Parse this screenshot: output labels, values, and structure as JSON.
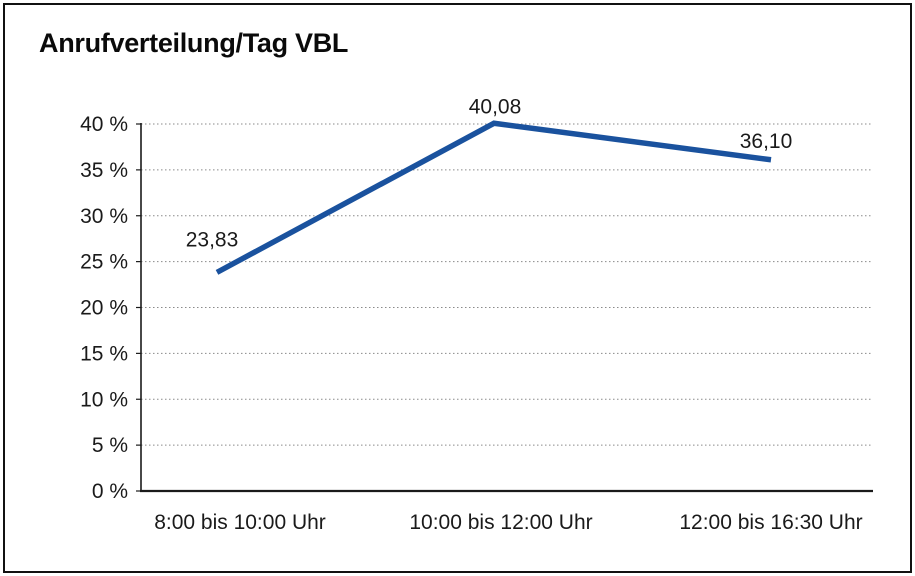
{
  "title": "Anrufverteilung/Tag VBL",
  "colors": {
    "background": "#ffffff",
    "border": "#111111",
    "line": "#1a529e",
    "grid": "#8a8a8a",
    "axis": "#1a1a1a",
    "text": "#1a1a1a"
  },
  "chart_data": {
    "type": "line",
    "title": "Anrufverteilung/Tag VBL",
    "categories": [
      "8:00 bis 10:00 Uhr",
      "10:00 bis 12:00 Uhr",
      "12:00 bis 16:30 Uhr"
    ],
    "series": [
      {
        "name": "Anrufverteilung/Tag VBL",
        "values": [
          23.83,
          40.08,
          36.1
        ]
      }
    ],
    "data_labels": [
      "23,83",
      "40,08",
      "36,10"
    ],
    "y_tick_labels": [
      "0 %",
      "5 %",
      "10 %",
      "15 %",
      "20 %",
      "25 %",
      "30 %",
      "35 %",
      "40 %"
    ],
    "ylim": [
      0,
      40
    ],
    "y_step": 5,
    "grid": true,
    "grid_style": "dotted",
    "legend": false,
    "xlabel": "",
    "ylabel": ""
  }
}
